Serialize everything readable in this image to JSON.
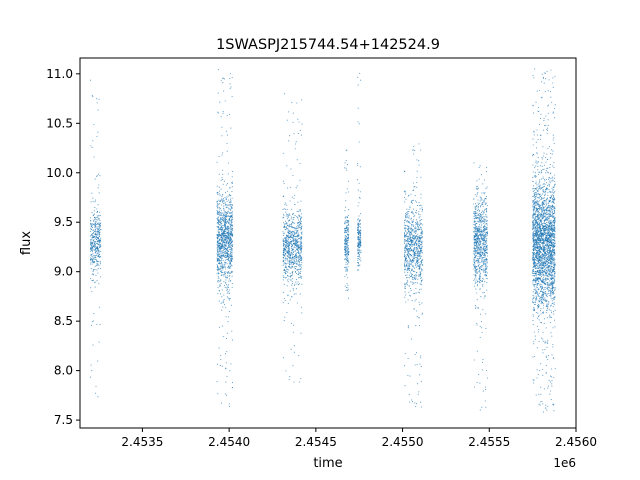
{
  "chart_data": {
    "type": "scatter",
    "title": "1SWASPJ215744.54+142524.9",
    "xlabel": "time",
    "ylabel": "flux",
    "x_offset_label": "1e6",
    "xlim": [
      2453140,
      2456000
    ],
    "ylim": [
      7.42,
      11.16
    ],
    "x_ticks": [
      2453500,
      2454000,
      2454500,
      2455000,
      2455500,
      2456000
    ],
    "x_tick_labels": [
      "2.4535",
      "2.4540",
      "2.4545",
      "2.4550",
      "2.4555",
      "2.4560"
    ],
    "y_ticks": [
      7.5,
      8.0,
      8.5,
      9.0,
      9.5,
      10.0,
      10.5,
      11.0
    ],
    "y_tick_labels": [
      "7.5",
      "8.0",
      "8.5",
      "9.0",
      "9.5",
      "10.0",
      "10.5",
      "11.0"
    ],
    "grid": false,
    "marker_color": "#1f77b4",
    "series": [
      {
        "segments": [
          {
            "x_range": [
              2453200,
              2453260
            ],
            "center": 9.3,
            "spread": 0.16,
            "outlier_range": [
              7.65,
              11.0
            ],
            "points": 420
          },
          {
            "x_range": [
              2453930,
              2454020
            ],
            "center": 9.32,
            "spread": 0.24,
            "outlier_range": [
              7.6,
              11.05
            ],
            "points": 1100
          },
          {
            "x_range": [
              2454310,
              2454420
            ],
            "center": 9.25,
            "spread": 0.18,
            "outlier_range": [
              7.85,
              10.8
            ],
            "points": 800
          },
          {
            "x_range": [
              2454665,
              2454690
            ],
            "center": 9.3,
            "spread": 0.15,
            "outlier_range": [
              8.7,
              10.25
            ],
            "points": 220
          },
          {
            "x_range": [
              2454740,
              2454760
            ],
            "center": 9.33,
            "spread": 0.13,
            "outlier_range": [
              8.95,
              11.02
            ],
            "points": 180
          },
          {
            "x_range": [
              2455010,
              2455115
            ],
            "center": 9.25,
            "spread": 0.2,
            "outlier_range": [
              7.62,
              10.3
            ],
            "points": 820
          },
          {
            "x_range": [
              2455410,
              2455490
            ],
            "center": 9.3,
            "spread": 0.22,
            "outlier_range": [
              7.6,
              10.15
            ],
            "points": 800
          },
          {
            "x_range": [
              2455750,
              2455880
            ],
            "center": 9.28,
            "spread": 0.32,
            "outlier_range": [
              7.58,
              11.05
            ],
            "points": 2600
          }
        ]
      }
    ]
  }
}
